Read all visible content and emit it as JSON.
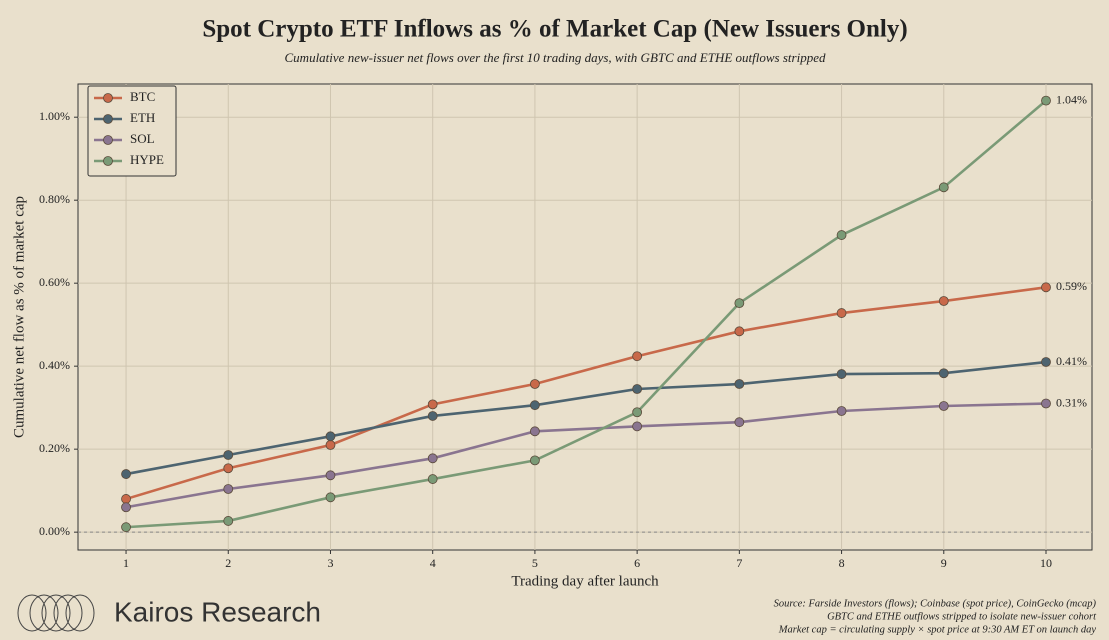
{
  "chart_data": {
    "type": "line",
    "title": "Spot Crypto ETF Inflows as % of Market Cap (New Issuers Only)",
    "subtitle": "Cumulative new-issuer net flows over the first 10 trading days, with GBTC and ETHE outflows stripped",
    "x_label": "Trading day after launch",
    "y_label": "Cumulative net flow as % of market cap",
    "x": [
      1,
      2,
      3,
      4,
      5,
      6,
      7,
      8,
      9,
      10
    ],
    "series": [
      {
        "name": "BTC",
        "color": "#c8694a",
        "values": [
          0.08,
          0.154,
          0.21,
          0.308,
          0.357,
          0.424,
          0.484,
          0.528,
          0.557,
          0.59
        ],
        "value_labels": [
          null,
          null,
          null,
          null,
          null,
          null,
          null,
          null,
          null,
          "0.59%"
        ]
      },
      {
        "name": "ETH",
        "color": "#4d6470",
        "values": [
          0.14,
          0.186,
          0.231,
          0.28,
          0.306,
          0.345,
          0.357,
          0.381,
          0.383,
          0.41
        ],
        "value_labels": [
          null,
          null,
          null,
          null,
          null,
          null,
          null,
          null,
          null,
          "0.41%"
        ]
      },
      {
        "name": "SOL",
        "color": "#8a7590",
        "values": [
          0.06,
          0.104,
          0.137,
          0.178,
          0.243,
          0.255,
          0.265,
          0.292,
          0.304,
          0.31
        ],
        "value_labels": [
          null,
          null,
          null,
          null,
          null,
          null,
          null,
          null,
          null,
          "0.31%"
        ]
      },
      {
        "name": "HYPE",
        "color": "#7a9a76",
        "values": [
          0.012,
          0.027,
          0.084,
          0.128,
          0.173,
          0.289,
          0.552,
          0.716,
          0.831,
          1.04
        ],
        "value_labels": [
          null,
          null,
          null,
          null,
          null,
          null,
          null,
          null,
          null,
          "1.04%"
        ]
      }
    ],
    "xlim": [
      0.53,
      10.45
    ],
    "ylim": [
      -0.043,
      1.08
    ],
    "xticks": [
      1,
      2,
      3,
      4,
      5,
      6,
      7,
      8,
      9,
      10
    ],
    "yticks": [
      {
        "value": 0,
        "label": "0.00%"
      },
      {
        "value": 0.2,
        "label": "0.20%"
      },
      {
        "value": 0.4,
        "label": "0.40%"
      },
      {
        "value": 0.6,
        "label": "0.60%"
      },
      {
        "value": 0.8,
        "label": "0.80%"
      },
      {
        "value": 1.0,
        "label": "1.00%"
      }
    ],
    "grid": true,
    "zero_line": true,
    "legend": "upper left"
  },
  "footer": {
    "brand": "Kairos Research",
    "source": [
      "Source: Farside Investors (flows); Coinbase (spot price), CoinGecko (mcap)",
      "GBTC and ETHE outflows stripped to isolate new-issuer cohort",
      "Market cap = circulating supply × spot price at 9:30 AM ET on launch day"
    ]
  }
}
